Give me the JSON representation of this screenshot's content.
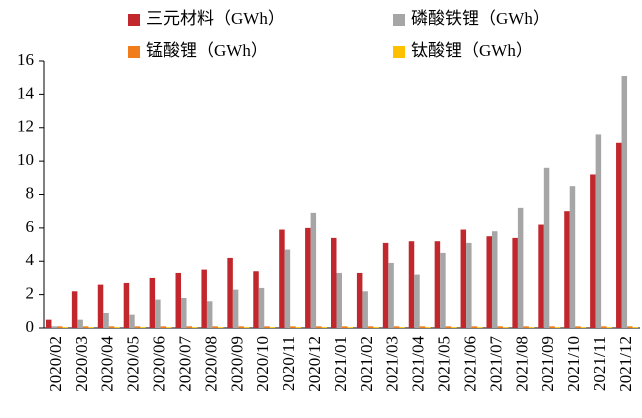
{
  "chart_data": {
    "type": "bar",
    "categories": [
      "2020/02",
      "2020/03",
      "2020/04",
      "2020/05",
      "2020/06",
      "2020/07",
      "2020/08",
      "2020/09",
      "2020/10",
      "2020/11",
      "2020/12",
      "2021/01",
      "2021/02",
      "2021/03",
      "2021/04",
      "2021/05",
      "2021/06",
      "2021/07",
      "2021/08",
      "2021/09",
      "2021/10",
      "2021/11",
      "2021/12"
    ],
    "series": [
      {
        "name": "三元材料（GWh）",
        "color": "#c1272d",
        "values": [
          0.5,
          2.2,
          2.6,
          2.7,
          3.0,
          3.3,
          3.5,
          4.2,
          3.4,
          5.9,
          6.0,
          5.4,
          3.3,
          5.1,
          5.2,
          5.2,
          5.9,
          5.5,
          5.4,
          6.2,
          7.0,
          9.2,
          11.1
        ]
      },
      {
        "name": "磷酸铁锂（GWh）",
        "color": "#a6a6a6",
        "values": [
          0.1,
          0.5,
          0.9,
          0.8,
          1.7,
          1.8,
          1.6,
          2.3,
          2.4,
          4.7,
          6.9,
          3.3,
          2.2,
          3.9,
          3.2,
          4.5,
          5.1,
          5.8,
          7.2,
          9.6,
          8.5,
          11.6,
          15.1
        ]
      },
      {
        "name": "锰酸锂（GWh）",
        "color": "#f07d1a",
        "values": [
          0.1,
          0.1,
          0.1,
          0.1,
          0.1,
          0.1,
          0.1,
          0.1,
          0.1,
          0.1,
          0.1,
          0.1,
          0.1,
          0.1,
          0.1,
          0.1,
          0.1,
          0.1,
          0.1,
          0.1,
          0.1,
          0.1,
          0.1
        ]
      },
      {
        "name": "钛酸锂（GWh）",
        "color": "#ffc000",
        "values": [
          0.05,
          0.05,
          0.05,
          0.05,
          0.05,
          0.05,
          0.05,
          0.05,
          0.05,
          0.05,
          0.05,
          0.05,
          0.05,
          0.05,
          0.05,
          0.05,
          0.05,
          0.05,
          0.05,
          0.05,
          0.05,
          0.05,
          0.05
        ]
      }
    ],
    "ylim": [
      0,
      16
    ],
    "yticks": [
      0,
      2,
      4,
      6,
      8,
      10,
      12,
      14,
      16
    ],
    "grid": false
  }
}
